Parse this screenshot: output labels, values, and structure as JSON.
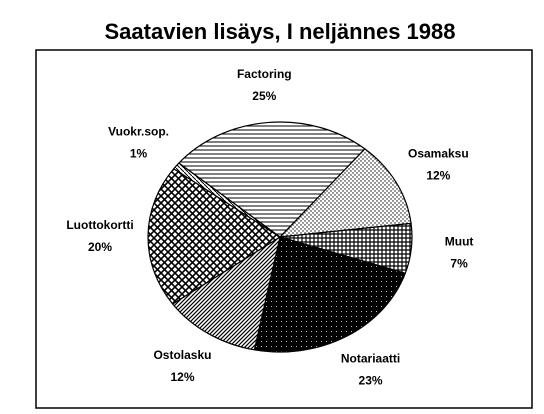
{
  "chart_data": {
    "type": "pie",
    "title": "Saatavien lisäys, I neljännes 1988",
    "categories": [
      "Factoring",
      "Osamaksu",
      "Muut",
      "Notariaatti",
      "Ostolasku",
      "Luottokortti",
      "Vuokr.sop."
    ],
    "values": [
      25,
      12,
      7,
      23,
      12,
      20,
      1
    ],
    "value_labels": [
      "25%",
      "12%",
      "7%",
      "23%",
      "12%",
      "20%",
      "1%"
    ]
  }
}
